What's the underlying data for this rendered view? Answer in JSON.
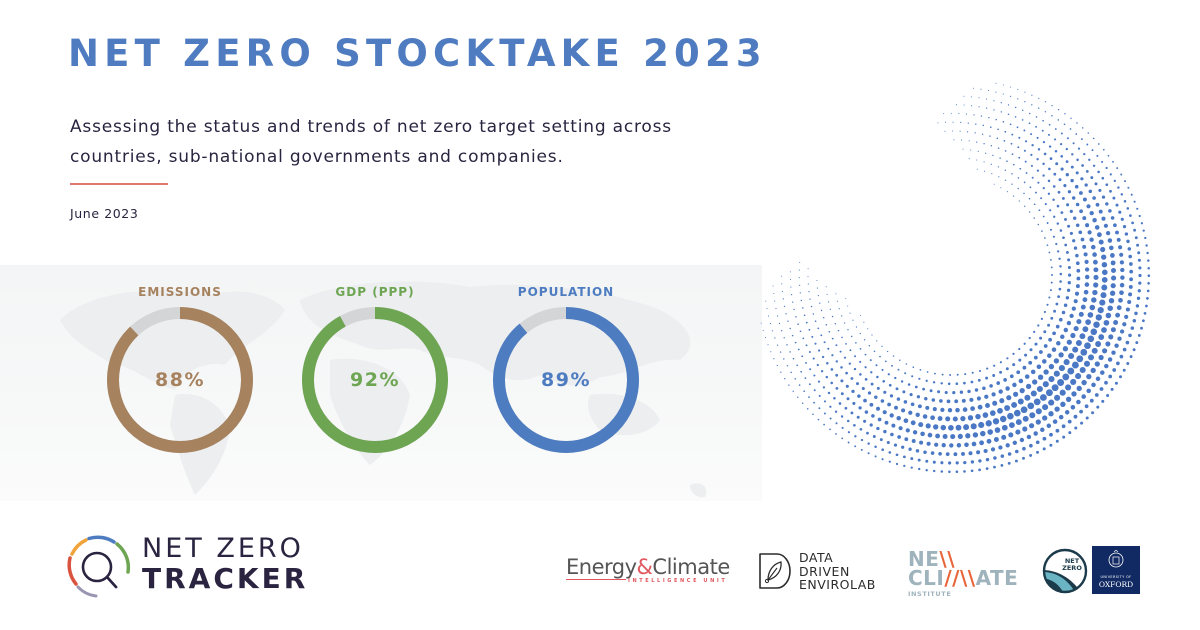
{
  "header": {
    "title": "NET ZERO STOCKTAKE 2023",
    "subtitle": "Assessing the status and trends of net zero target setting across countries, sub-national governments and companies.",
    "date": "June 2023"
  },
  "colors": {
    "title_blue": "#4f7cc0",
    "text_dark": "#2a2440",
    "rule_coral": "#e2786d",
    "emissions_brown": "#a6825f",
    "gdp_green": "#6ea553",
    "population_blue": "#4d7cc1",
    "donut_remainder_gray": "#d4d5d6",
    "halftone_blue": "#4a78c4"
  },
  "metrics": [
    {
      "label": "EMISSIONS",
      "value": 88,
      "display": "88%",
      "color": "#a6825f"
    },
    {
      "label": "GDP (PPP)",
      "value": 92,
      "display": "92%",
      "color": "#6ea553"
    },
    {
      "label": "POPULATION",
      "value": 89,
      "display": "89%",
      "color": "#4d7cc1"
    }
  ],
  "chart_data": {
    "type": "pie",
    "title": "Share covered by net zero targets",
    "categories": [
      "EMISSIONS",
      "GDP (PPP)",
      "POPULATION"
    ],
    "values": [
      88,
      92,
      89
    ],
    "unit": "%",
    "remainder": [
      12,
      8,
      11
    ]
  },
  "footer": {
    "logo": {
      "line1": "NET ZERO",
      "line2": "TRACKER"
    },
    "partners": {
      "eciu": {
        "word1": "Energy",
        "amp": "&",
        "word2": "Climate",
        "sub": "INTELLIGENCE UNIT"
      },
      "ddel": {
        "line1": "DATA",
        "line2": "DRIVEN",
        "line3": "ENVIROLAB"
      },
      "nci": {
        "row1a": "NE",
        "row1b": "\\\\",
        "row2a": "CLI",
        "row2b": "//\\\\",
        "row2c": "ATE",
        "sub": "INSTITUTE"
      },
      "oxford": {
        "badge": "NET ZERO",
        "uni": "UNIVERSITY OF",
        "name": "OXFORD"
      }
    }
  }
}
